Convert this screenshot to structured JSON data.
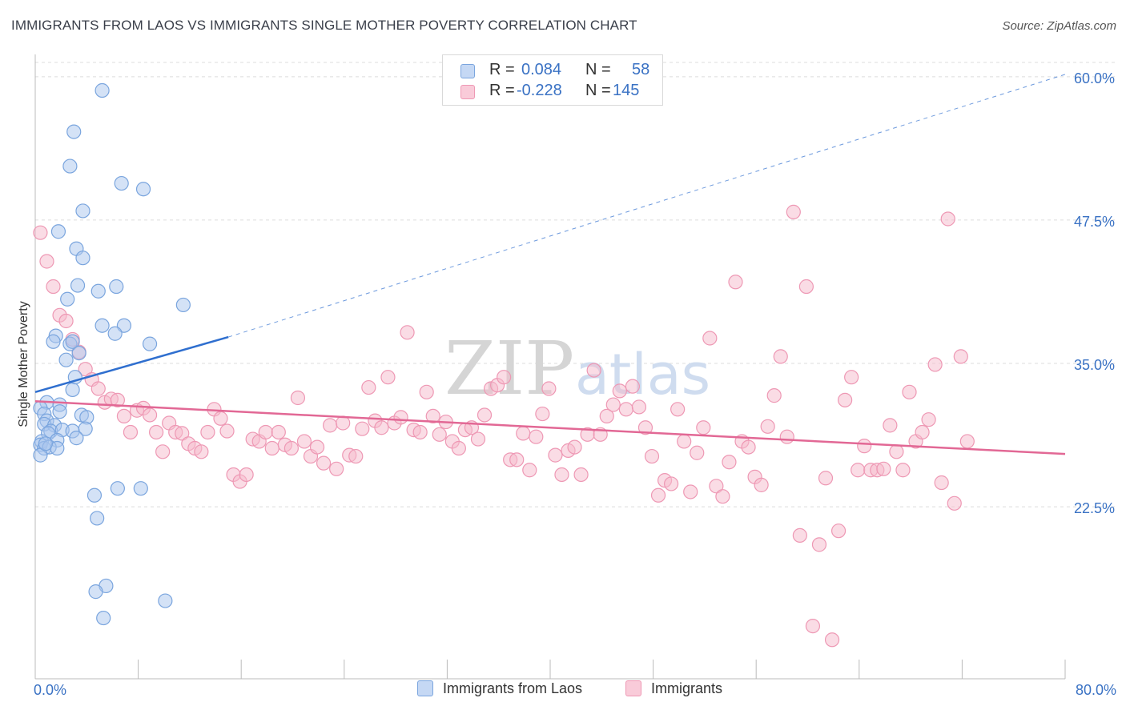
{
  "title": "IMMIGRANTS FROM LAOS VS IMMIGRANTS SINGLE MOTHER POVERTY CORRELATION CHART",
  "source": "Source: ZipAtlas.com",
  "watermark": {
    "zip": "ZIP",
    "atlas": "atlas"
  },
  "stats": {
    "r_label": "R =",
    "n_label": "N =",
    "laos": {
      "r": "0.084",
      "n": "58"
    },
    "immigrants": {
      "r": "-0.228",
      "n": "145"
    }
  },
  "legend": {
    "laos": "Immigrants from Laos",
    "immigrants": "Immigrants"
  },
  "colors": {
    "laos_fill": "#a9c6ee",
    "laos_stroke": "#7aa5de",
    "laos_line": "#2f6fcf",
    "imm_fill": "#f6b9cc",
    "imm_stroke": "#ee98b4",
    "imm_line": "#e26895",
    "tick_label": "#3a72c4",
    "grid": "#dcdcdc"
  },
  "chart_data": {
    "type": "scatter",
    "title": "IMMIGRANTS FROM LAOS VS IMMIGRANTS SINGLE MOTHER POVERTY CORRELATION CHART",
    "xlabel": "",
    "ylabel": "Single Mother Poverty",
    "xlim": [
      0,
      80
    ],
    "ylim": [
      7.5,
      62.5
    ],
    "x_tick_labels": [
      "0.0%",
      "80.0%"
    ],
    "y_ticks": [
      {
        "value": 22.5,
        "label": "22.5%"
      },
      {
        "value": 35.0,
        "label": "35.0%"
      },
      {
        "value": 47.5,
        "label": "47.5%"
      },
      {
        "value": 60.0,
        "label": "60.0%"
      }
    ],
    "grid": true,
    "series": [
      {
        "name": "Immigrants from Laos",
        "r": 0.084,
        "n": 58,
        "trend": {
          "x0": 0,
          "y0": 32.5,
          "x1": 15,
          "y1": 37.3,
          "dashed_to_x": 80,
          "dashed_y1": 60.2
        },
        "points": [
          [
            5.2,
            58.8
          ],
          [
            3.0,
            55.2
          ],
          [
            2.7,
            52.2
          ],
          [
            6.7,
            50.7
          ],
          [
            8.4,
            50.2
          ],
          [
            3.7,
            48.3
          ],
          [
            1.8,
            46.5
          ],
          [
            3.2,
            45.0
          ],
          [
            3.7,
            44.2
          ],
          [
            3.3,
            41.8
          ],
          [
            4.9,
            41.3
          ],
          [
            6.3,
            41.7
          ],
          [
            2.5,
            40.6
          ],
          [
            11.5,
            40.1
          ],
          [
            5.2,
            38.3
          ],
          [
            6.9,
            38.3
          ],
          [
            6.2,
            37.6
          ],
          [
            1.6,
            37.4
          ],
          [
            1.4,
            36.9
          ],
          [
            2.7,
            36.7
          ],
          [
            2.9,
            36.9
          ],
          [
            8.9,
            36.7
          ],
          [
            3.4,
            35.9
          ],
          [
            2.4,
            35.3
          ],
          [
            3.1,
            33.8
          ],
          [
            2.9,
            32.7
          ],
          [
            0.9,
            31.6
          ],
          [
            1.9,
            31.4
          ],
          [
            0.4,
            31.1
          ],
          [
            0.7,
            30.6
          ],
          [
            1.9,
            30.8
          ],
          [
            3.6,
            30.5
          ],
          [
            4.0,
            30.3
          ],
          [
            0.9,
            30.0
          ],
          [
            0.7,
            29.7
          ],
          [
            1.5,
            29.6
          ],
          [
            1.2,
            29.1
          ],
          [
            1.0,
            28.9
          ],
          [
            2.1,
            29.2
          ],
          [
            2.9,
            29.1
          ],
          [
            3.9,
            29.3
          ],
          [
            0.5,
            28.2
          ],
          [
            0.4,
            27.9
          ],
          [
            1.7,
            28.3
          ],
          [
            0.7,
            27.6
          ],
          [
            1.1,
            27.7
          ],
          [
            1.7,
            27.6
          ],
          [
            0.4,
            27.0
          ],
          [
            4.6,
            23.5
          ],
          [
            6.4,
            24.1
          ],
          [
            8.2,
            24.1
          ],
          [
            4.8,
            21.5
          ],
          [
            5.5,
            15.6
          ],
          [
            4.7,
            15.1
          ],
          [
            10.1,
            14.3
          ],
          [
            5.3,
            12.8
          ],
          [
            3.2,
            28.5
          ],
          [
            0.8,
            28.0
          ]
        ]
      },
      {
        "name": "Immigrants",
        "r": -0.228,
        "n": 145,
        "trend": {
          "x0": 0,
          "y0": 31.7,
          "x1": 80,
          "y1": 27.1
        },
        "points": [
          [
            0.4,
            46.4
          ],
          [
            0.9,
            43.9
          ],
          [
            1.4,
            41.7
          ],
          [
            1.9,
            39.2
          ],
          [
            2.4,
            38.7
          ],
          [
            2.9,
            37.1
          ],
          [
            3.4,
            36.0
          ],
          [
            3.9,
            34.5
          ],
          [
            4.4,
            33.6
          ],
          [
            4.9,
            32.8
          ],
          [
            5.4,
            31.6
          ],
          [
            5.9,
            31.9
          ],
          [
            6.4,
            31.8
          ],
          [
            6.9,
            30.4
          ],
          [
            7.4,
            29.0
          ],
          [
            7.9,
            30.9
          ],
          [
            8.4,
            31.1
          ],
          [
            8.9,
            30.5
          ],
          [
            9.4,
            29.0
          ],
          [
            9.9,
            27.3
          ],
          [
            10.4,
            29.8
          ],
          [
            10.9,
            29.0
          ],
          [
            11.4,
            28.9
          ],
          [
            11.9,
            28.0
          ],
          [
            12.4,
            27.6
          ],
          [
            12.9,
            27.3
          ],
          [
            13.4,
            29.0
          ],
          [
            13.9,
            31.0
          ],
          [
            14.4,
            30.2
          ],
          [
            14.9,
            29.1
          ],
          [
            15.4,
            25.3
          ],
          [
            15.9,
            24.7
          ],
          [
            16.4,
            25.3
          ],
          [
            16.9,
            28.4
          ],
          [
            17.4,
            28.2
          ],
          [
            17.9,
            29.0
          ],
          [
            18.4,
            27.6
          ],
          [
            18.9,
            29.0
          ],
          [
            19.4,
            27.9
          ],
          [
            19.9,
            27.6
          ],
          [
            20.4,
            32.0
          ],
          [
            20.9,
            28.2
          ],
          [
            21.4,
            26.9
          ],
          [
            21.9,
            27.7
          ],
          [
            22.4,
            26.3
          ],
          [
            22.9,
            29.6
          ],
          [
            23.4,
            25.8
          ],
          [
            23.9,
            29.8
          ],
          [
            24.4,
            27.0
          ],
          [
            24.9,
            26.9
          ],
          [
            25.4,
            29.3
          ],
          [
            25.9,
            32.9
          ],
          [
            26.4,
            30.0
          ],
          [
            26.9,
            29.4
          ],
          [
            27.4,
            33.8
          ],
          [
            27.9,
            29.8
          ],
          [
            28.4,
            30.3
          ],
          [
            28.9,
            37.7
          ],
          [
            29.4,
            29.2
          ],
          [
            29.9,
            29.0
          ],
          [
            30.4,
            32.5
          ],
          [
            30.9,
            30.4
          ],
          [
            31.4,
            28.8
          ],
          [
            31.9,
            29.9
          ],
          [
            32.4,
            28.2
          ],
          [
            32.9,
            27.6
          ],
          [
            33.4,
            29.2
          ],
          [
            33.9,
            29.4
          ],
          [
            34.4,
            28.4
          ],
          [
            34.9,
            30.5
          ],
          [
            35.4,
            32.8
          ],
          [
            35.9,
            33.1
          ],
          [
            36.4,
            33.8
          ],
          [
            36.9,
            26.6
          ],
          [
            37.4,
            26.6
          ],
          [
            37.9,
            28.9
          ],
          [
            38.4,
            25.7
          ],
          [
            38.9,
            28.6
          ],
          [
            39.4,
            30.6
          ],
          [
            39.9,
            32.8
          ],
          [
            40.4,
            27.0
          ],
          [
            40.9,
            25.3
          ],
          [
            41.4,
            27.4
          ],
          [
            41.9,
            27.7
          ],
          [
            42.4,
            25.3
          ],
          [
            42.9,
            28.8
          ],
          [
            43.4,
            34.4
          ],
          [
            43.9,
            28.8
          ],
          [
            44.4,
            30.4
          ],
          [
            44.9,
            31.4
          ],
          [
            45.4,
            32.6
          ],
          [
            45.9,
            31.0
          ],
          [
            46.4,
            33.0
          ],
          [
            46.9,
            31.2
          ],
          [
            47.4,
            29.4
          ],
          [
            47.9,
            26.9
          ],
          [
            48.4,
            23.5
          ],
          [
            48.9,
            24.8
          ],
          [
            49.4,
            24.5
          ],
          [
            49.9,
            31.0
          ],
          [
            50.4,
            28.2
          ],
          [
            50.9,
            23.8
          ],
          [
            51.4,
            27.2
          ],
          [
            51.9,
            29.4
          ],
          [
            52.4,
            37.2
          ],
          [
            52.9,
            24.3
          ],
          [
            53.4,
            23.4
          ],
          [
            53.9,
            26.4
          ],
          [
            54.4,
            42.1
          ],
          [
            54.9,
            28.2
          ],
          [
            55.4,
            27.7
          ],
          [
            55.9,
            25.1
          ],
          [
            56.4,
            24.4
          ],
          [
            56.9,
            29.5
          ],
          [
            57.4,
            32.2
          ],
          [
            57.9,
            35.6
          ],
          [
            58.4,
            28.6
          ],
          [
            58.9,
            48.2
          ],
          [
            59.4,
            20.0
          ],
          [
            59.9,
            41.7
          ],
          [
            60.4,
            12.1
          ],
          [
            60.9,
            19.2
          ],
          [
            61.4,
            25.0
          ],
          [
            61.9,
            10.9
          ],
          [
            62.4,
            20.4
          ],
          [
            62.9,
            31.8
          ],
          [
            63.4,
            33.8
          ],
          [
            63.9,
            25.7
          ],
          [
            64.4,
            27.8
          ],
          [
            64.9,
            25.7
          ],
          [
            65.4,
            25.7
          ],
          [
            65.9,
            25.8
          ],
          [
            66.4,
            29.6
          ],
          [
            66.9,
            27.3
          ],
          [
            67.4,
            25.7
          ],
          [
            67.9,
            32.5
          ],
          [
            68.4,
            28.2
          ],
          [
            68.9,
            29.0
          ],
          [
            69.4,
            30.1
          ],
          [
            69.9,
            34.9
          ],
          [
            70.4,
            24.6
          ],
          [
            70.9,
            47.6
          ],
          [
            71.4,
            22.8
          ],
          [
            71.9,
            35.6
          ],
          [
            72.4,
            28.2
          ]
        ]
      }
    ]
  }
}
